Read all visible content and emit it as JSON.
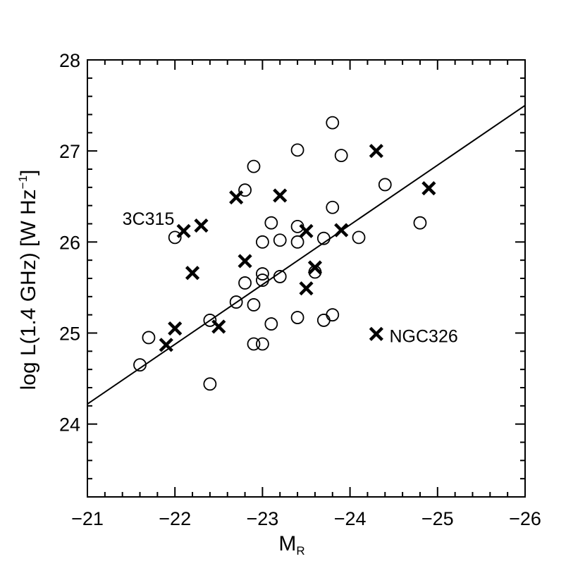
{
  "chart_data": {
    "type": "scatter",
    "xlabel_main": "M",
    "xlabel_sub": "R",
    "ylabel_main": "log L(1.4 GHz) [W Hz",
    "ylabel_exp": "−1",
    "ylabel_close": "]",
    "xlim": [
      -21,
      -26
    ],
    "ylim": [
      23.2,
      28
    ],
    "xticks": [
      -21,
      -22,
      -23,
      -24,
      -25,
      -26
    ],
    "xtick_labels": [
      "−21",
      "−22",
      "−23",
      "−24",
      "−25",
      "−26"
    ],
    "yticks": [
      24,
      25,
      26,
      27,
      28
    ],
    "ytick_labels": [
      "24",
      "25",
      "26",
      "27",
      "28"
    ],
    "fit_line": {
      "x": [
        -21,
        -26
      ],
      "y": [
        24.22,
        27.5
      ]
    },
    "series": [
      {
        "marker": "circle",
        "points": [
          [
            -21.6,
            24.65
          ],
          [
            -21.7,
            24.95
          ],
          [
            -22.0,
            26.05
          ],
          [
            -22.4,
            25.14
          ],
          [
            -22.4,
            24.44
          ],
          [
            -22.7,
            25.34
          ],
          [
            -22.8,
            25.55
          ],
          [
            -22.8,
            26.57
          ],
          [
            -22.9,
            26.83
          ],
          [
            -22.9,
            25.31
          ],
          [
            -22.9,
            24.88
          ],
          [
            -23.0,
            24.88
          ],
          [
            -23.0,
            25.65
          ],
          [
            -23.0,
            25.58
          ],
          [
            -23.0,
            26.0
          ],
          [
            -23.1,
            26.21
          ],
          [
            -23.1,
            25.1
          ],
          [
            -23.2,
            25.62
          ],
          [
            -23.2,
            26.02
          ],
          [
            -23.4,
            27.01
          ],
          [
            -23.4,
            26.17
          ],
          [
            -23.4,
            26.0
          ],
          [
            -23.4,
            25.17
          ],
          [
            -23.6,
            25.67
          ],
          [
            -23.7,
            26.04
          ],
          [
            -23.7,
            25.14
          ],
          [
            -23.8,
            27.31
          ],
          [
            -23.8,
            26.38
          ],
          [
            -23.8,
            25.2
          ],
          [
            -23.9,
            26.95
          ],
          [
            -24.1,
            26.05
          ],
          [
            -24.4,
            26.63
          ],
          [
            -24.8,
            26.21
          ]
        ]
      },
      {
        "marker": "cross",
        "points": [
          [
            -21.9,
            24.87
          ],
          [
            -22.0,
            25.05
          ],
          [
            -22.1,
            26.12
          ],
          [
            -22.2,
            25.66
          ],
          [
            -22.3,
            26.18
          ],
          [
            -22.5,
            25.07
          ],
          [
            -22.7,
            26.49
          ],
          [
            -22.8,
            25.79
          ],
          [
            -23.2,
            26.51
          ],
          [
            -23.5,
            26.12
          ],
          [
            -23.5,
            25.49
          ],
          [
            -23.6,
            25.72
          ],
          [
            -23.9,
            26.13
          ],
          [
            -24.3,
            27.0
          ],
          [
            -24.3,
            24.99
          ],
          [
            -24.9,
            26.59
          ]
        ]
      }
    ],
    "annotations": [
      {
        "text": "3C315",
        "x": -21.4,
        "y": 26.19
      },
      {
        "text": "NGC326",
        "x": -24.45,
        "y": 24.9
      }
    ]
  }
}
